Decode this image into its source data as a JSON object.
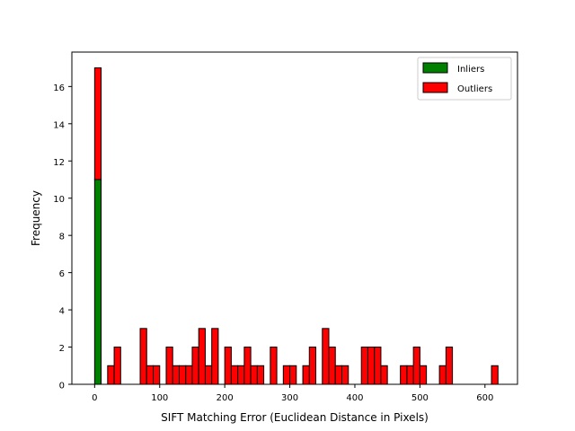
{
  "chart_data": {
    "type": "bar",
    "subtype": "stacked-histogram",
    "title": "",
    "xlabel": "SIFT Matching Error (Euclidean Distance in Pixels)",
    "ylabel": "Frequency",
    "xlim": [
      -35,
      650
    ],
    "ylim": [
      0,
      17.85
    ],
    "xticks": [
      0,
      100,
      200,
      300,
      400,
      500,
      600
    ],
    "yticks": [
      0,
      2,
      4,
      6,
      8,
      10,
      12,
      14,
      16
    ],
    "bin_width": 10,
    "grid": false,
    "legend_position": "top-right",
    "series": [
      {
        "name": "Inliers",
        "color": "#008000",
        "bins": [
          {
            "x0": 0,
            "x1": 10,
            "value": 11
          }
        ]
      },
      {
        "name": "Outliers",
        "color": "#ff0000",
        "bins": [
          {
            "x0": 0,
            "x1": 10,
            "value": 6
          },
          {
            "x0": 20,
            "x1": 30,
            "value": 1
          },
          {
            "x0": 30,
            "x1": 40,
            "value": 2
          },
          {
            "x0": 70,
            "x1": 80,
            "value": 3
          },
          {
            "x0": 80,
            "x1": 90,
            "value": 1
          },
          {
            "x0": 90,
            "x1": 100,
            "value": 1
          },
          {
            "x0": 110,
            "x1": 120,
            "value": 2
          },
          {
            "x0": 120,
            "x1": 130,
            "value": 1
          },
          {
            "x0": 130,
            "x1": 140,
            "value": 1
          },
          {
            "x0": 140,
            "x1": 150,
            "value": 1
          },
          {
            "x0": 150,
            "x1": 160,
            "value": 2
          },
          {
            "x0": 160,
            "x1": 170,
            "value": 3
          },
          {
            "x0": 170,
            "x1": 180,
            "value": 1
          },
          {
            "x0": 180,
            "x1": 190,
            "value": 3
          },
          {
            "x0": 200,
            "x1": 210,
            "value": 2
          },
          {
            "x0": 210,
            "x1": 220,
            "value": 1
          },
          {
            "x0": 220,
            "x1": 230,
            "value": 1
          },
          {
            "x0": 230,
            "x1": 240,
            "value": 2
          },
          {
            "x0": 240,
            "x1": 250,
            "value": 1
          },
          {
            "x0": 250,
            "x1": 260,
            "value": 1
          },
          {
            "x0": 270,
            "x1": 280,
            "value": 2
          },
          {
            "x0": 290,
            "x1": 300,
            "value": 1
          },
          {
            "x0": 300,
            "x1": 310,
            "value": 1
          },
          {
            "x0": 320,
            "x1": 330,
            "value": 1
          },
          {
            "x0": 330,
            "x1": 340,
            "value": 2
          },
          {
            "x0": 350,
            "x1": 360,
            "value": 3
          },
          {
            "x0": 360,
            "x1": 370,
            "value": 2
          },
          {
            "x0": 370,
            "x1": 380,
            "value": 1
          },
          {
            "x0": 380,
            "x1": 390,
            "value": 1
          },
          {
            "x0": 410,
            "x1": 420,
            "value": 2
          },
          {
            "x0": 420,
            "x1": 430,
            "value": 2
          },
          {
            "x0": 430,
            "x1": 440,
            "value": 2
          },
          {
            "x0": 440,
            "x1": 450,
            "value": 1
          },
          {
            "x0": 470,
            "x1": 480,
            "value": 1
          },
          {
            "x0": 480,
            "x1": 490,
            "value": 1
          },
          {
            "x0": 490,
            "x1": 500,
            "value": 2
          },
          {
            "x0": 500,
            "x1": 510,
            "value": 1
          },
          {
            "x0": 530,
            "x1": 540,
            "value": 1
          },
          {
            "x0": 540,
            "x1": 550,
            "value": 2
          },
          {
            "x0": 610,
            "x1": 620,
            "value": 1
          }
        ]
      }
    ]
  }
}
